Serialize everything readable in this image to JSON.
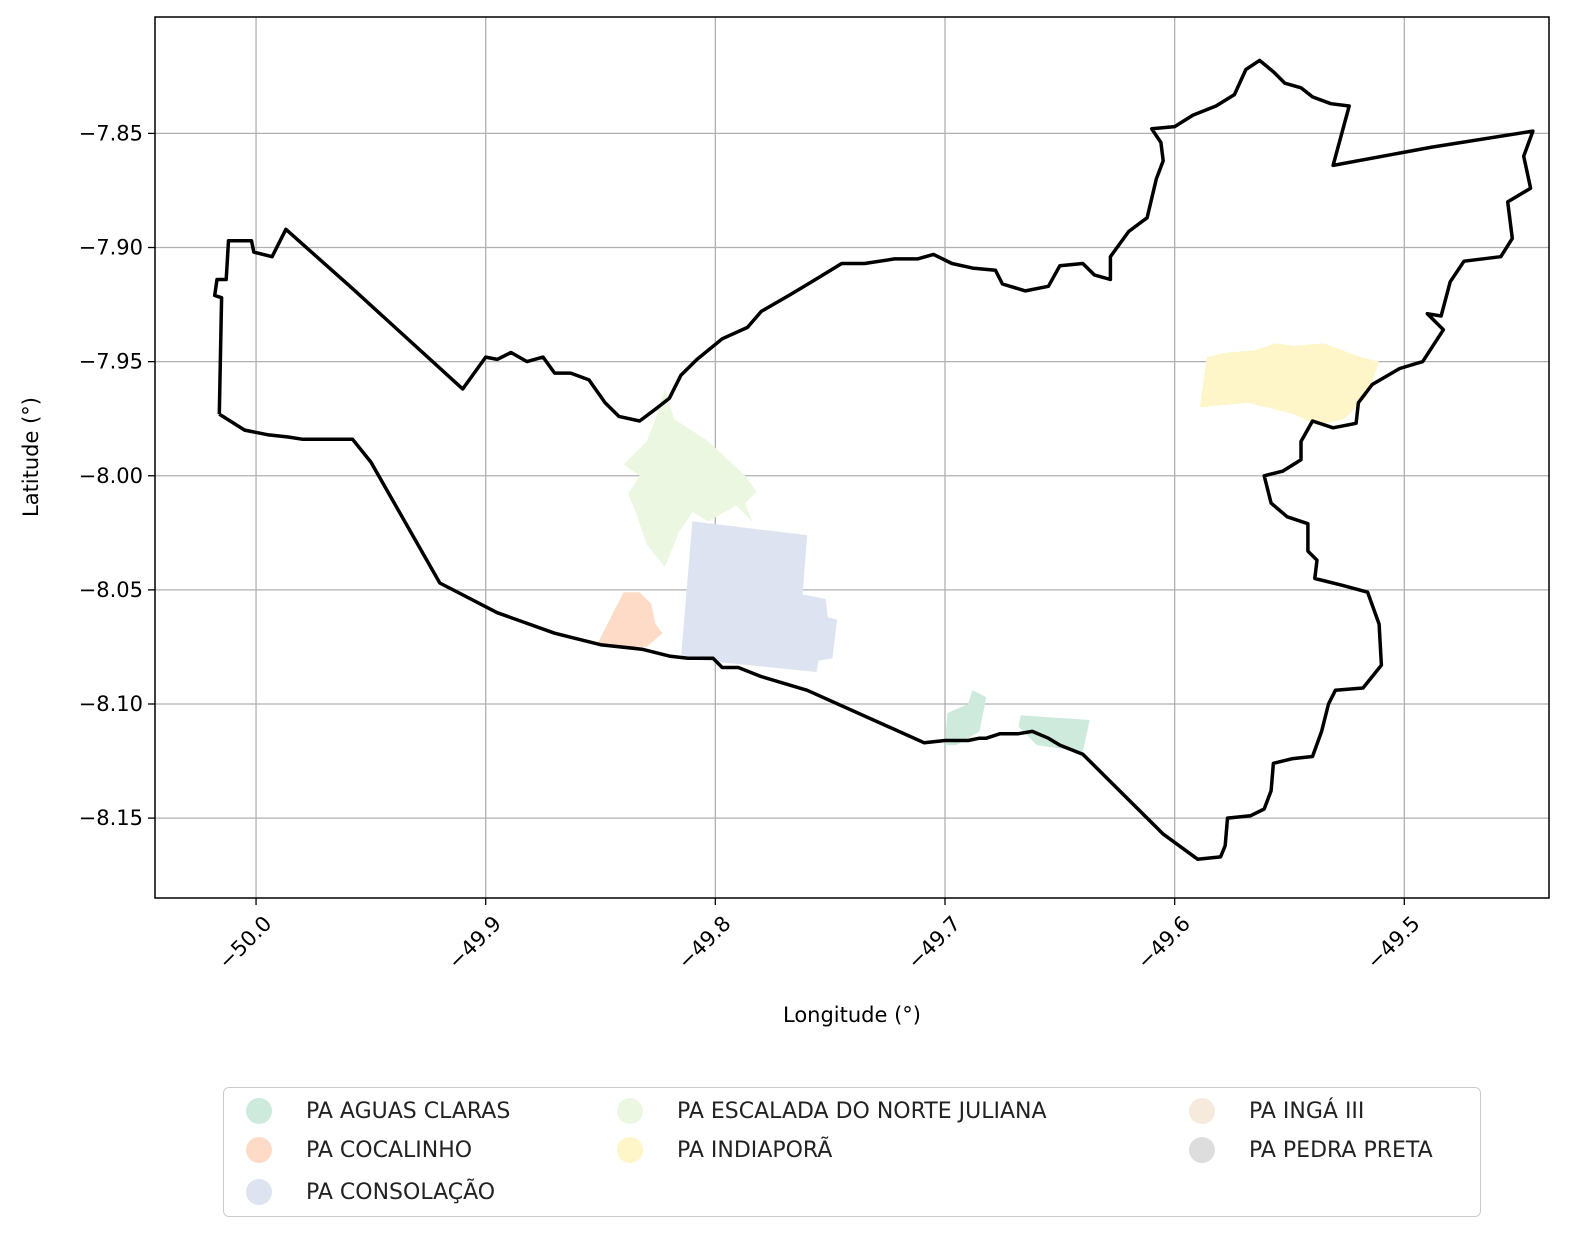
{
  "chart_data": {
    "type": "map",
    "xlabel": "Longitude (°)",
    "ylabel": "Latitude (°)",
    "xlim": [
      -50.044,
      -49.437
    ],
    "ylim": [
      -8.185,
      -7.799
    ],
    "xticks": [
      -50.0,
      -49.9,
      -49.8,
      -49.7,
      -49.6,
      -49.5
    ],
    "xtick_labels": [
      "−50.0",
      "−49.9",
      "−49.8",
      "−49.7",
      "−49.6",
      "−49.5"
    ],
    "yticks": [
      -7.85,
      -7.9,
      -7.95,
      -8.0,
      -8.05,
      -8.1,
      -8.15
    ],
    "ytick_labels": [
      "−7.85",
      "−7.90",
      "−7.95",
      "−8.00",
      "−8.05",
      "−8.10",
      "−8.15"
    ],
    "grid": true,
    "legend_position": "bottom-center",
    "boundary": {
      "color": "#000000",
      "coords": [
        [
          -50.016,
          -7.973
        ],
        [
          -50.015,
          -7.922
        ],
        [
          -50.018,
          -7.921
        ],
        [
          -50.017,
          -7.914
        ],
        [
          -50.013,
          -7.914
        ],
        [
          -50.012,
          -7.897
        ],
        [
          -50.002,
          -7.897
        ],
        [
          -50.001,
          -7.902
        ],
        [
          -49.993,
          -7.904
        ],
        [
          -49.987,
          -7.892
        ],
        [
          -49.958,
          -7.918
        ],
        [
          -49.91,
          -7.962
        ],
        [
          -49.9,
          -7.948
        ],
        [
          -49.895,
          -7.949
        ],
        [
          -49.889,
          -7.946
        ],
        [
          -49.882,
          -7.95
        ],
        [
          -49.875,
          -7.948
        ],
        [
          -49.87,
          -7.955
        ],
        [
          -49.863,
          -7.955
        ],
        [
          -49.855,
          -7.958
        ],
        [
          -49.848,
          -7.968
        ],
        [
          -49.842,
          -7.974
        ],
        [
          -49.833,
          -7.976
        ],
        [
          -49.825,
          -7.97
        ],
        [
          -49.82,
          -7.966
        ],
        [
          -49.815,
          -7.956
        ],
        [
          -49.808,
          -7.949
        ],
        [
          -49.797,
          -7.94
        ],
        [
          -49.786,
          -7.935
        ],
        [
          -49.78,
          -7.928
        ],
        [
          -49.768,
          -7.921
        ],
        [
          -49.758,
          -7.915
        ],
        [
          -49.745,
          -7.907
        ],
        [
          -49.735,
          -7.907
        ],
        [
          -49.722,
          -7.905
        ],
        [
          -49.712,
          -7.905
        ],
        [
          -49.705,
          -7.903
        ],
        [
          -49.697,
          -7.907
        ],
        [
          -49.688,
          -7.909
        ],
        [
          -49.678,
          -7.91
        ],
        [
          -49.675,
          -7.916
        ],
        [
          -49.665,
          -7.919
        ],
        [
          -49.655,
          -7.917
        ],
        [
          -49.65,
          -7.908
        ],
        [
          -49.64,
          -7.907
        ],
        [
          -49.635,
          -7.912
        ],
        [
          -49.628,
          -7.914
        ],
        [
          -49.628,
          -7.904
        ],
        [
          -49.62,
          -7.893
        ],
        [
          -49.612,
          -7.887
        ],
        [
          -49.608,
          -7.87
        ],
        [
          -49.605,
          -7.862
        ],
        [
          -49.606,
          -7.854
        ],
        [
          -49.61,
          -7.848
        ],
        [
          -49.6,
          -7.847
        ],
        [
          -49.592,
          -7.842
        ],
        [
          -49.582,
          -7.838
        ],
        [
          -49.574,
          -7.833
        ],
        [
          -49.569,
          -7.822
        ],
        [
          -49.563,
          -7.818
        ],
        [
          -49.557,
          -7.823
        ],
        [
          -49.552,
          -7.828
        ],
        [
          -49.545,
          -7.83
        ],
        [
          -49.54,
          -7.834
        ],
        [
          -49.532,
          -7.837
        ],
        [
          -49.524,
          -7.838
        ],
        [
          -49.531,
          -7.864
        ],
        [
          -49.488,
          -7.856
        ],
        [
          -49.444,
          -7.849
        ],
        [
          -49.448,
          -7.86
        ],
        [
          -49.445,
          -7.874
        ],
        [
          -49.455,
          -7.88
        ],
        [
          -49.453,
          -7.896
        ],
        [
          -49.458,
          -7.904
        ],
        [
          -49.474,
          -7.906
        ],
        [
          -49.48,
          -7.915
        ],
        [
          -49.484,
          -7.93
        ],
        [
          -49.49,
          -7.929
        ],
        [
          -49.483,
          -7.936
        ],
        [
          -49.492,
          -7.95
        ],
        [
          -49.502,
          -7.953
        ],
        [
          -49.514,
          -7.96
        ],
        [
          -49.52,
          -7.968
        ],
        [
          -49.521,
          -7.977
        ],
        [
          -49.531,
          -7.979
        ],
        [
          -49.54,
          -7.976
        ],
        [
          -49.545,
          -7.985
        ],
        [
          -49.545,
          -7.993
        ],
        [
          -49.553,
          -7.998
        ],
        [
          -49.561,
          -8.0
        ],
        [
          -49.558,
          -8.012
        ],
        [
          -49.551,
          -8.018
        ],
        [
          -49.542,
          -8.021
        ],
        [
          -49.542,
          -8.033
        ],
        [
          -49.538,
          -8.037
        ],
        [
          -49.539,
          -8.045
        ],
        [
          -49.527,
          -8.048
        ],
        [
          -49.516,
          -8.051
        ],
        [
          -49.511,
          -8.065
        ],
        [
          -49.51,
          -8.083
        ],
        [
          -49.518,
          -8.093
        ],
        [
          -49.53,
          -8.094
        ],
        [
          -49.533,
          -8.1
        ],
        [
          -49.536,
          -8.112
        ],
        [
          -49.54,
          -8.123
        ],
        [
          -49.549,
          -8.124
        ],
        [
          -49.557,
          -8.126
        ],
        [
          -49.558,
          -8.138
        ],
        [
          -49.561,
          -8.146
        ],
        [
          -49.567,
          -8.149
        ],
        [
          -49.577,
          -8.15
        ],
        [
          -49.578,
          -8.162
        ],
        [
          -49.58,
          -8.167
        ],
        [
          -49.59,
          -8.168
        ],
        [
          -49.605,
          -8.157
        ],
        [
          -49.64,
          -8.122
        ],
        [
          -49.65,
          -8.118
        ],
        [
          -49.655,
          -8.115
        ],
        [
          -49.662,
          -8.112
        ],
        [
          -49.668,
          -8.113
        ],
        [
          -49.676,
          -8.113
        ],
        [
          -49.682,
          -8.115
        ],
        [
          -49.685,
          -8.115
        ],
        [
          -49.69,
          -8.116
        ],
        [
          -49.7,
          -8.116
        ],
        [
          -49.709,
          -8.117
        ],
        [
          -49.76,
          -8.094
        ],
        [
          -49.78,
          -8.088
        ],
        [
          -49.79,
          -8.084
        ],
        [
          -49.797,
          -8.084
        ],
        [
          -49.801,
          -8.08
        ],
        [
          -49.812,
          -8.08
        ],
        [
          -49.82,
          -8.079
        ],
        [
          -49.832,
          -8.076
        ],
        [
          -49.85,
          -8.074
        ],
        [
          -49.87,
          -8.069
        ],
        [
          -49.895,
          -8.06
        ],
        [
          -49.92,
          -8.047
        ],
        [
          -49.95,
          -7.994
        ],
        [
          -49.958,
          -7.984
        ],
        [
          -49.98,
          -7.984
        ],
        [
          -49.986,
          -7.983
        ],
        [
          -49.995,
          -7.982
        ],
        [
          -50.005,
          -7.98
        ],
        [
          -50.016,
          -7.973
        ]
      ]
    },
    "series": [
      {
        "name": "PA AGUAS CLARAS",
        "color": "#cdeadc",
        "polygons": [
          [
            [
              -49.7,
              -8.118
            ],
            [
              -49.699,
              -8.104
            ],
            [
              -49.69,
              -8.1
            ],
            [
              -49.688,
              -8.094
            ],
            [
              -49.682,
              -8.097
            ],
            [
              -49.685,
              -8.112
            ],
            [
              -49.695,
              -8.118
            ]
          ],
          [
            [
              -49.667,
              -8.105
            ],
            [
              -49.637,
              -8.107
            ],
            [
              -49.64,
              -8.121
            ],
            [
              -49.66,
              -8.118
            ],
            [
              -49.668,
              -8.11
            ]
          ]
        ]
      },
      {
        "name": "PA COCALINHO",
        "color": "#fddbc6",
        "polygons": [
          [
            [
              -49.851,
              -8.073
            ],
            [
              -49.84,
              -8.051
            ],
            [
              -49.833,
              -8.051
            ],
            [
              -49.828,
              -8.056
            ],
            [
              -49.826,
              -8.065
            ],
            [
              -49.823,
              -8.069
            ],
            [
              -49.83,
              -8.075
            ],
            [
              -49.845,
              -8.075
            ]
          ]
        ]
      },
      {
        "name": "PA CONSOLAÇÃO",
        "color": "#dde3f0",
        "polygons": [
          [
            [
              -49.81,
              -8.02
            ],
            [
              -49.76,
              -8.026
            ],
            [
              -49.762,
              -8.052
            ],
            [
              -49.752,
              -8.054
            ],
            [
              -49.751,
              -8.062
            ],
            [
              -49.747,
              -8.063
            ],
            [
              -49.749,
              -8.08
            ],
            [
              -49.755,
              -8.081
            ],
            [
              -49.756,
              -8.086
            ],
            [
              -49.815,
              -8.08
            ]
          ]
        ]
      },
      {
        "name": "PA ESCALADA DO NORTE JULIANA",
        "color": "#ecf7e2",
        "polygons": [
          [
            [
              -49.822,
              -8.04
            ],
            [
              -49.83,
              -8.03
            ],
            [
              -49.835,
              -8.015
            ],
            [
              -49.838,
              -8.008
            ],
            [
              -49.833,
              -8.0
            ],
            [
              -49.84,
              -7.995
            ],
            [
              -49.83,
              -7.985
            ],
            [
              -49.826,
              -7.975
            ],
            [
              -49.822,
              -7.962
            ],
            [
              -49.818,
              -7.975
            ],
            [
              -49.803,
              -7.985
            ],
            [
              -49.787,
              -8.0
            ],
            [
              -49.782,
              -8.007
            ],
            [
              -49.787,
              -8.012
            ],
            [
              -49.784,
              -8.02
            ],
            [
              -49.791,
              -8.013
            ],
            [
              -49.803,
              -8.02
            ],
            [
              -49.81,
              -8.016
            ],
            [
              -49.816,
              -8.025
            ]
          ]
        ]
      },
      {
        "name": "PA INDIAPORÃ",
        "color": "#fef5c8",
        "polygons": [
          [
            [
              -49.589,
              -7.97
            ],
            [
              -49.586,
              -7.948
            ],
            [
              -49.577,
              -7.946
            ],
            [
              -49.565,
              -7.945
            ],
            [
              -49.556,
              -7.942
            ],
            [
              -49.548,
              -7.943
            ],
            [
              -49.535,
              -7.942
            ],
            [
              -49.519,
              -7.948
            ],
            [
              -49.511,
              -7.95
            ],
            [
              -49.516,
              -7.965
            ],
            [
              -49.526,
              -7.975
            ],
            [
              -49.538,
              -7.978
            ],
            [
              -49.548,
              -7.973
            ],
            [
              -49.568,
              -7.968
            ]
          ]
        ]
      },
      {
        "name": "PA INGÁ III",
        "color": "#f5eadc",
        "polygons": []
      },
      {
        "name": "PA PEDRA PRETA",
        "color": "#dddddd",
        "polygons": []
      }
    ]
  }
}
